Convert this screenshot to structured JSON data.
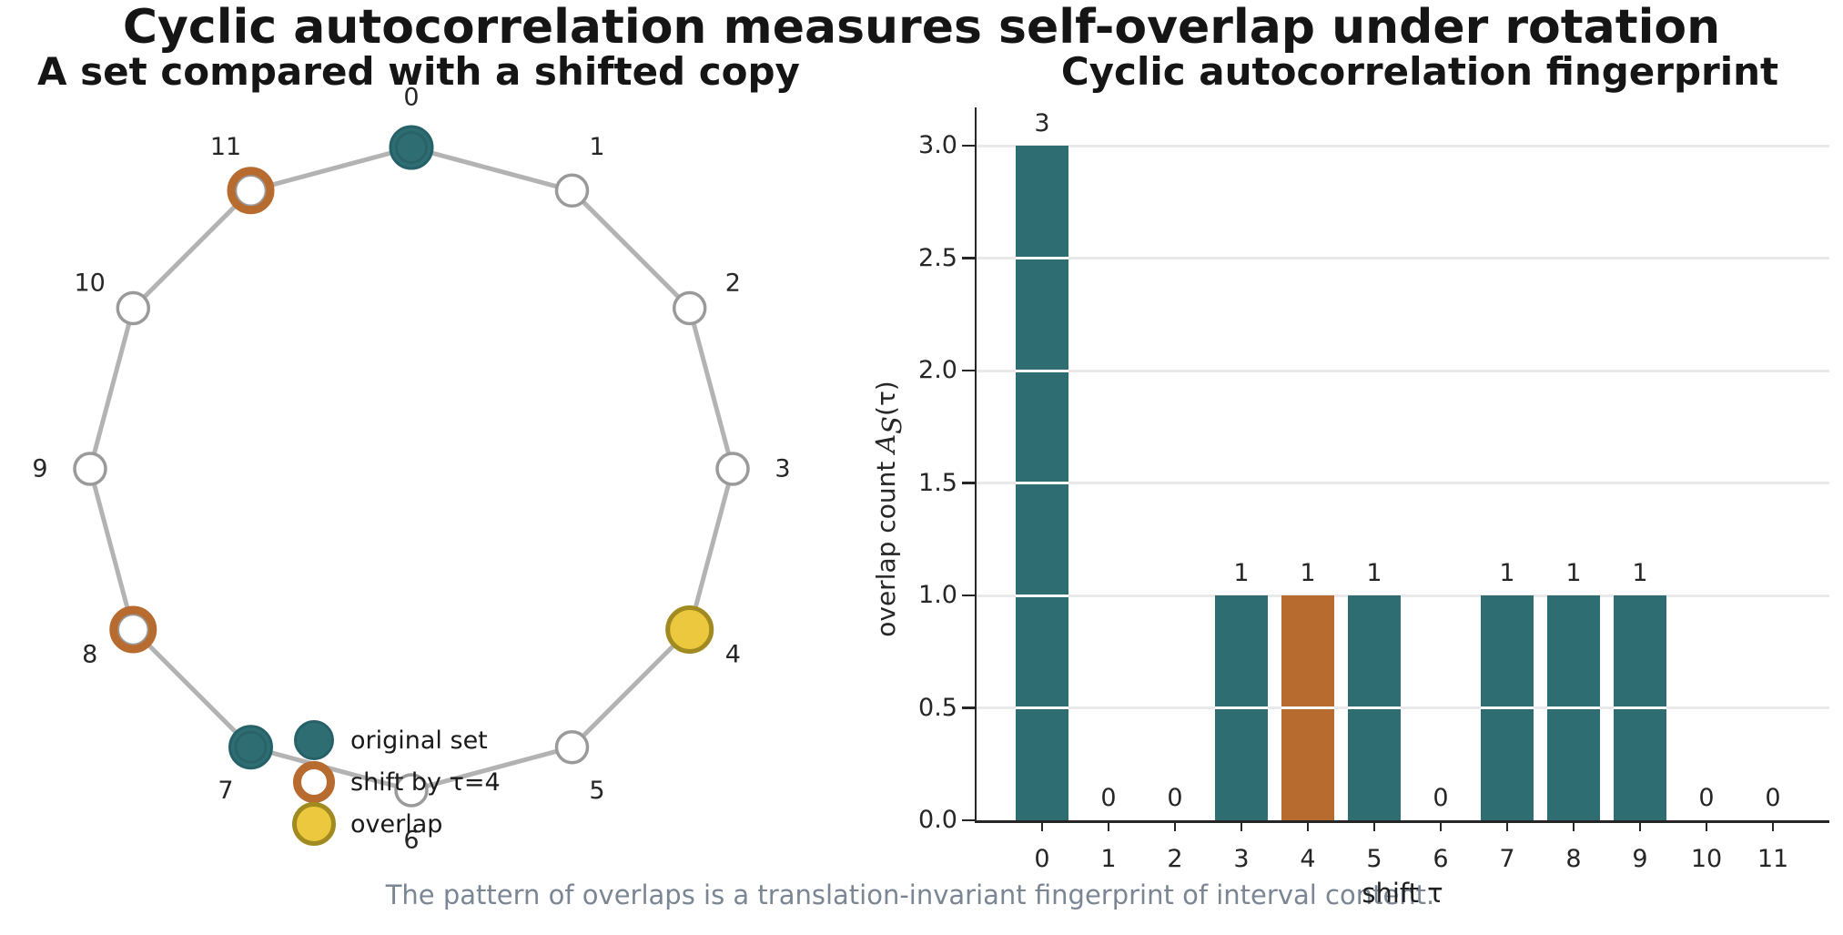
{
  "title": "Cyclic autocorrelation measures self-overlap under rotation",
  "caption": "The pattern of overlaps is a translation-invariant fingerprint of interval content.",
  "colors": {
    "teal": "#2E6E73",
    "teal_edge": "#26616A",
    "orange": "#B76B2F",
    "yellow": "#EBC83D",
    "yellow_edge": "#A18A20",
    "node_edge_gray": "#9A9A9A",
    "polygon_gray": "#B3B3B3",
    "grid_gray": "#E9E9E9",
    "caption_gray": "#7B8694"
  },
  "left_panel": {
    "subtitle": "A set compared with a shifted copy",
    "n_positions": 12,
    "node_labels": [
      "0",
      "1",
      "2",
      "3",
      "4",
      "5",
      "6",
      "7",
      "8",
      "9",
      "10",
      "11"
    ],
    "original_set": [
      0,
      4,
      7
    ],
    "shift_tau": 4,
    "shifted_set": [
      4,
      8,
      11
    ],
    "overlap_set": [
      4
    ],
    "node_states": [
      "original",
      "empty",
      "empty",
      "empty",
      "overlap",
      "empty",
      "empty",
      "original",
      "shifted",
      "empty",
      "empty",
      "shifted"
    ],
    "legend": [
      {
        "label": "original set",
        "marker": "original"
      },
      {
        "label": "shift by τ=4",
        "marker": "shift"
      },
      {
        "label": "overlap",
        "marker": "overlap"
      }
    ]
  },
  "right_panel": {
    "subtitle": "Cyclic autocorrelation fingerprint",
    "ytick_labels": [
      "0.0",
      "0.5",
      "1.0",
      "1.5",
      "2.0",
      "2.5",
      "3.0"
    ],
    "ylabel_parts": {
      "prefix": "overlap count ",
      "var": "A",
      "sub": "S",
      "suffix": "(τ)"
    }
  },
  "chart_data": {
    "type": "bar",
    "title": "Cyclic autocorrelation fingerprint",
    "categories": [
      "0",
      "1",
      "2",
      "3",
      "4",
      "5",
      "6",
      "7",
      "8",
      "9",
      "10",
      "11"
    ],
    "values": [
      3,
      0,
      0,
      1,
      1,
      1,
      0,
      1,
      1,
      1,
      0,
      0
    ],
    "bar_value_labels": [
      "3",
      "0",
      "0",
      "1",
      "1",
      "1",
      "0",
      "1",
      "1",
      "1",
      "0",
      "0"
    ],
    "highlight_index": 4,
    "bar_color": "#2E6E73",
    "highlight_color": "#B76B2F",
    "xlabel": "shift τ",
    "ylabel": "overlap count A_S(τ)",
    "ylim": [
      0.0,
      3.15
    ],
    "yticks": [
      0.0,
      0.5,
      1.0,
      1.5,
      2.0,
      2.5,
      3.0
    ],
    "grid": true,
    "grid_over_bars_color": "#ffffff",
    "legend_position": "none"
  }
}
